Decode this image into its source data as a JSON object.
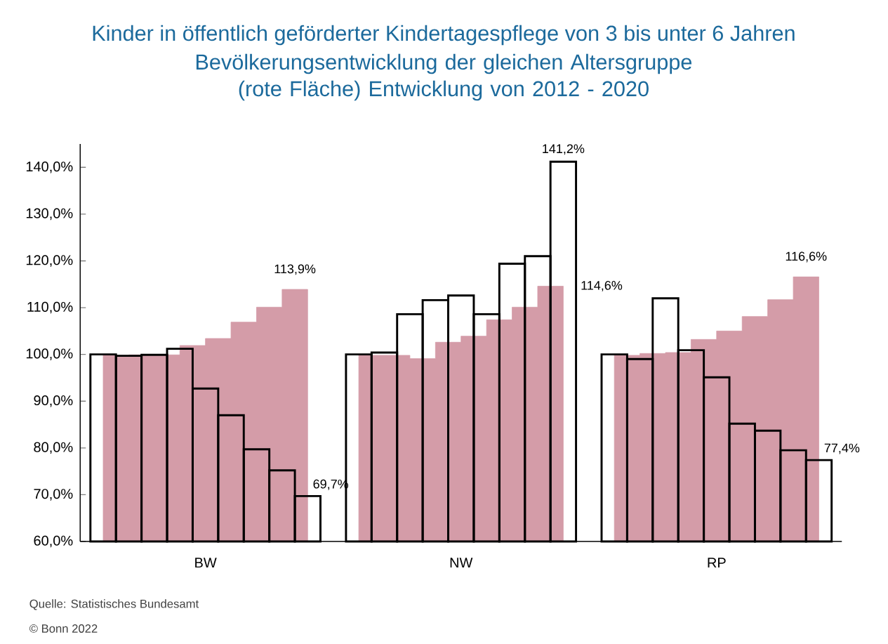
{
  "chart_data": {
    "type": "bar",
    "title": "Kinder in öffentlich geförderter Kindertagespflege von 3 bis unter 6 Jahren",
    "subtitle": "Bevölkerungsentwicklung der gleichen Altersgruppe (rote Fläche) Entwicklung von 2012 - 2020",
    "categories": [
      null,
      null,
      null,
      null,
      "BW",
      null,
      null,
      null,
      null,
      null,
      null,
      null,
      null,
      null,
      "NW",
      null,
      null,
      null,
      null,
      null,
      null,
      null,
      null,
      null,
      "RP",
      null,
      null,
      null,
      null
    ],
    "series": [
      {
        "type": "area",
        "color": "#d49ca8",
        "values": [
          100,
          99.8,
          99.9,
          99.9,
          101.9,
          103.4,
          106.9,
          110.1,
          113.9,
          null,
          100,
          99.8,
          99.8,
          99.1,
          102.6,
          103.9,
          107.4,
          110.1,
          114.6,
          null,
          100,
          99.8,
          100.2,
          100.4,
          103.2,
          105.0,
          108.1,
          111.7,
          116.6
        ],
        "value_labels": [
          null,
          null,
          null,
          null,
          null,
          null,
          null,
          null,
          "113,9%",
          null,
          null,
          null,
          null,
          null,
          null,
          null,
          null,
          null,
          "114,6%",
          null,
          null,
          null,
          null,
          null,
          null,
          null,
          null,
          null,
          "116,6%"
        ]
      },
      {
        "color": "#000000",
        "values": [
          100,
          99.7,
          99.9,
          101.2,
          92.7,
          87.0,
          79.7,
          75.2,
          69.7,
          null,
          100,
          100.4,
          108.6,
          111.6,
          112.6,
          108.6,
          119.4,
          121.0,
          141.2,
          null,
          100,
          99.0,
          112.0,
          100.9,
          95.1,
          85.2,
          83.7,
          79.5,
          77.4
        ],
        "value_labels": [
          null,
          null,
          null,
          null,
          null,
          null,
          null,
          null,
          "69,7%",
          null,
          null,
          null,
          null,
          null,
          null,
          null,
          null,
          null,
          "141,2%",
          null,
          null,
          null,
          null,
          null,
          null,
          null,
          null,
          null,
          "77,4%"
        ]
      }
    ],
    "ylim": [
      60,
      145
    ],
    "yticks": [
      {
        "value": 60,
        "label": "60,0%"
      },
      {
        "value": 70,
        "label": "70,0%"
      },
      {
        "value": 80,
        "label": "80,0%"
      },
      {
        "value": 90,
        "label": "90,0%"
      },
      {
        "value": 100,
        "label": "100,0%"
      },
      {
        "value": 110,
        "label": "110,0%"
      },
      {
        "value": 120,
        "label": "120,0%"
      },
      {
        "value": 130,
        "label": "130,0%"
      },
      {
        "value": 140,
        "label": "140,0%"
      }
    ],
    "annotations": [
      "Quelle: Statistisches Bundesamt",
      "© Bonn 2022"
    ]
  }
}
